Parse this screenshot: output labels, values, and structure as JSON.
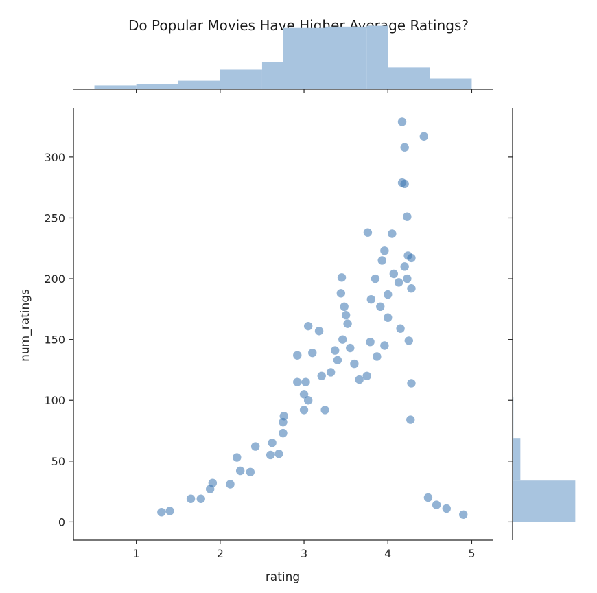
{
  "chart_data": {
    "type": "scatter",
    "title": "Do Popular Movies Have Higher Average Ratings?",
    "xlabel": "rating",
    "ylabel": "num_ratings",
    "xlim": [
      0.25,
      5.25
    ],
    "ylim": [
      -15,
      340
    ],
    "xticks": [
      1,
      2,
      3,
      4,
      5
    ],
    "yticks": [
      0,
      50,
      100,
      150,
      200,
      250,
      300
    ],
    "grid": false,
    "point_color": "#3a75b0",
    "hist_color": "#a8c4df",
    "marginal_x_hist": {
      "bins": [
        0.5,
        1.0,
        1.5,
        2.0,
        2.5,
        2.75,
        3.25,
        3.75,
        4.0,
        4.5,
        5.0
      ],
      "counts": [
        9,
        12,
        20,
        46,
        63,
        144,
        147,
        149,
        51,
        25
      ]
    },
    "marginal_y_hist": {
      "bins": [
        0,
        34,
        69,
        103
      ],
      "counts": [
        145,
        18,
        2
      ]
    },
    "highlight_points": [
      {
        "x": 4.17,
        "y": 329
      },
      {
        "x": 4.43,
        "y": 317
      },
      {
        "x": 4.2,
        "y": 308
      },
      {
        "x": 4.17,
        "y": 279
      },
      {
        "x": 4.2,
        "y": 278
      },
      {
        "x": 4.23,
        "y": 251
      },
      {
        "x": 3.76,
        "y": 238
      },
      {
        "x": 4.05,
        "y": 237
      },
      {
        "x": 3.96,
        "y": 223
      },
      {
        "x": 4.24,
        "y": 219
      },
      {
        "x": 4.28,
        "y": 217
      },
      {
        "x": 3.93,
        "y": 215
      },
      {
        "x": 4.2,
        "y": 210
      },
      {
        "x": 4.07,
        "y": 204
      },
      {
        "x": 3.45,
        "y": 201
      },
      {
        "x": 3.85,
        "y": 200
      },
      {
        "x": 4.23,
        "y": 200
      },
      {
        "x": 4.13,
        "y": 197
      },
      {
        "x": 4.28,
        "y": 192
      },
      {
        "x": 3.44,
        "y": 188
      },
      {
        "x": 4.0,
        "y": 187
      },
      {
        "x": 3.8,
        "y": 183
      },
      {
        "x": 3.48,
        "y": 177
      },
      {
        "x": 3.91,
        "y": 177
      },
      {
        "x": 3.5,
        "y": 170
      },
      {
        "x": 4.0,
        "y": 168
      },
      {
        "x": 3.52,
        "y": 163
      },
      {
        "x": 3.05,
        "y": 161
      },
      {
        "x": 4.15,
        "y": 159
      },
      {
        "x": 3.18,
        "y": 157
      },
      {
        "x": 3.46,
        "y": 150
      },
      {
        "x": 3.79,
        "y": 148
      },
      {
        "x": 3.96,
        "y": 145
      },
      {
        "x": 4.25,
        "y": 149
      },
      {
        "x": 3.55,
        "y": 143
      },
      {
        "x": 3.37,
        "y": 141
      },
      {
        "x": 2.92,
        "y": 137
      },
      {
        "x": 3.1,
        "y": 139
      },
      {
        "x": 3.4,
        "y": 133
      },
      {
        "x": 3.87,
        "y": 136
      },
      {
        "x": 3.6,
        "y": 130
      },
      {
        "x": 3.21,
        "y": 120
      },
      {
        "x": 3.32,
        "y": 123
      },
      {
        "x": 2.92,
        "y": 115
      },
      {
        "x": 3.02,
        "y": 115
      },
      {
        "x": 3.66,
        "y": 117
      },
      {
        "x": 3.75,
        "y": 120
      },
      {
        "x": 4.28,
        "y": 114
      },
      {
        "x": 3.0,
        "y": 105
      },
      {
        "x": 3.05,
        "y": 100
      },
      {
        "x": 2.76,
        "y": 87
      },
      {
        "x": 2.75,
        "y": 82
      },
      {
        "x": 3.0,
        "y": 92
      },
      {
        "x": 3.25,
        "y": 92
      },
      {
        "x": 4.27,
        "y": 84
      },
      {
        "x": 2.75,
        "y": 73
      },
      {
        "x": 2.62,
        "y": 65
      },
      {
        "x": 2.42,
        "y": 62
      },
      {
        "x": 2.2,
        "y": 53
      },
      {
        "x": 2.7,
        "y": 56
      },
      {
        "x": 2.6,
        "y": 55
      },
      {
        "x": 1.91,
        "y": 32
      },
      {
        "x": 2.12,
        "y": 31
      },
      {
        "x": 2.24,
        "y": 42
      },
      {
        "x": 2.36,
        "y": 41
      },
      {
        "x": 1.65,
        "y": 19
      },
      {
        "x": 1.77,
        "y": 19
      },
      {
        "x": 1.88,
        "y": 27
      },
      {
        "x": 4.48,
        "y": 20
      },
      {
        "x": 4.58,
        "y": 14
      },
      {
        "x": 4.7,
        "y": 11
      },
      {
        "x": 4.9,
        "y": 6
      },
      {
        "x": 1.3,
        "y": 8
      },
      {
        "x": 1.4,
        "y": 9
      }
    ]
  }
}
